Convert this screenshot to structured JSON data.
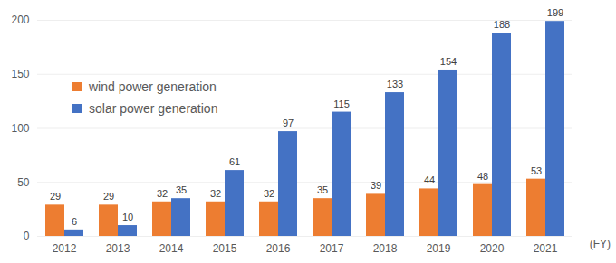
{
  "chart_data": {
    "type": "bar",
    "categories": [
      "2012",
      "2013",
      "2014",
      "2015",
      "2016",
      "2017",
      "2018",
      "2019",
      "2020",
      "2021"
    ],
    "series": [
      {
        "name": "wind power generation",
        "color": "#ED7D31",
        "values": [
          29,
          29,
          32,
          32,
          32,
          35,
          39,
          44,
          48,
          53
        ]
      },
      {
        "name": "solar power generation",
        "color": "#4472C4",
        "values": [
          6,
          10,
          35,
          61,
          97,
          115,
          133,
          154,
          188,
          199
        ]
      }
    ],
    "x_label": "(FY)",
    "ylim": [
      0,
      200
    ],
    "yticks": [
      0,
      50,
      100,
      150,
      200
    ],
    "grid": true,
    "legend": "upper left",
    "data_labels": true
  }
}
